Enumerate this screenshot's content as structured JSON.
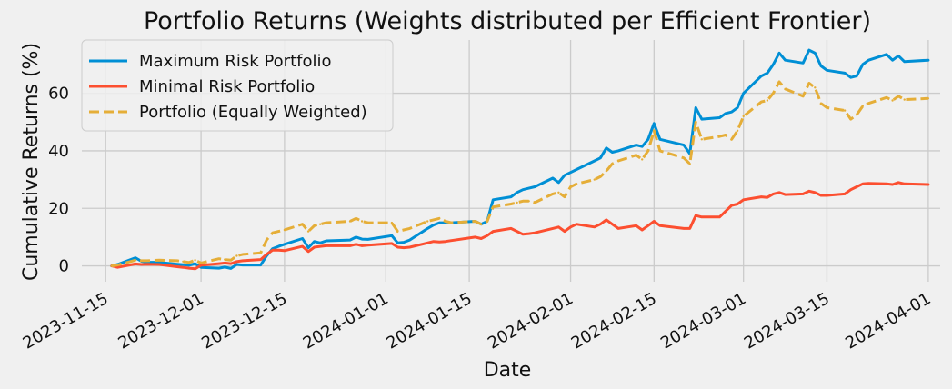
{
  "chart_data": {
    "type": "line",
    "title": "Portfolio Returns (Weights distributed per Efficient Frontier)",
    "xlabel": "Date",
    "ylabel": "Cumulative Returns (%)",
    "x_ticks": [
      "2023-11-15",
      "2023-12-01",
      "2023-12-15",
      "2024-01-01",
      "2024-01-15",
      "2024-02-01",
      "2024-02-15",
      "2024-03-01",
      "2024-03-15",
      "2024-04-01"
    ],
    "y_ticks": [
      0,
      20,
      40,
      60
    ],
    "xlim": [
      "2023-11-11",
      "2024-04-03"
    ],
    "ylim": [
      -5.5,
      78.5
    ],
    "grid": true,
    "legend_position": "top-left",
    "series": [
      {
        "name": "Maximum Risk Portfolio",
        "color": "#008fd5",
        "style": "solid",
        "points": [
          [
            "2023-11-16",
            0
          ],
          [
            "2023-11-17",
            0.5
          ],
          [
            "2023-11-20",
            2.8
          ],
          [
            "2023-11-21",
            1.6
          ],
          [
            "2023-11-22",
            1.3
          ],
          [
            "2023-11-24",
            1.2
          ],
          [
            "2023-11-27",
            0.6
          ],
          [
            "2023-11-28",
            0.4
          ],
          [
            "2023-11-29",
            0.2
          ],
          [
            "2023-11-30",
            0.8
          ],
          [
            "2023-12-01",
            -0.5
          ],
          [
            "2023-12-04",
            -0.8
          ],
          [
            "2023-12-05",
            -0.4
          ],
          [
            "2023-12-06",
            -0.9
          ],
          [
            "2023-12-07",
            0.5
          ],
          [
            "2023-12-08",
            0.3
          ],
          [
            "2023-12-11",
            0.3
          ],
          [
            "2023-12-12",
            3.5
          ],
          [
            "2023-12-13",
            6.0
          ],
          [
            "2023-12-14",
            6.8
          ],
          [
            "2023-12-15",
            7.5
          ],
          [
            "2023-12-18",
            9.5
          ],
          [
            "2023-12-19",
            6.3
          ],
          [
            "2023-12-20",
            8.5
          ],
          [
            "2023-12-21",
            8.0
          ],
          [
            "2023-12-22",
            8.7
          ],
          [
            "2023-12-26",
            9.0
          ],
          [
            "2023-12-27",
            10.0
          ],
          [
            "2023-12-28",
            9.3
          ],
          [
            "2023-12-29",
            9.2
          ],
          [
            "2024-01-02",
            10.5
          ],
          [
            "2024-01-03",
            8.0
          ],
          [
            "2024-01-04",
            8.2
          ],
          [
            "2024-01-05",
            9.0
          ],
          [
            "2024-01-08",
            13.0
          ],
          [
            "2024-01-09",
            14.2
          ],
          [
            "2024-01-10",
            15.0
          ],
          [
            "2024-01-11",
            15.0
          ],
          [
            "2024-01-12",
            15.0
          ],
          [
            "2024-01-16",
            15.5
          ],
          [
            "2024-01-17",
            14.5
          ],
          [
            "2024-01-18",
            15.5
          ],
          [
            "2024-01-19",
            23.0
          ],
          [
            "2024-01-22",
            24.0
          ],
          [
            "2024-01-23",
            25.5
          ],
          [
            "2024-01-24",
            26.5
          ],
          [
            "2024-01-25",
            27.0
          ],
          [
            "2024-01-26",
            27.5
          ],
          [
            "2024-01-29",
            30.5
          ],
          [
            "2024-01-30",
            29.0
          ],
          [
            "2024-01-31",
            31.5
          ],
          [
            "2024-02-01",
            32.5
          ],
          [
            "2024-02-02",
            33.5
          ],
          [
            "2024-02-05",
            36.5
          ],
          [
            "2024-02-06",
            37.5
          ],
          [
            "2024-02-07",
            41.0
          ],
          [
            "2024-02-08",
            39.5
          ],
          [
            "2024-02-09",
            40.0
          ],
          [
            "2024-02-12",
            42.0
          ],
          [
            "2024-02-13",
            41.5
          ],
          [
            "2024-02-14",
            44.0
          ],
          [
            "2024-02-15",
            49.5
          ],
          [
            "2024-02-16",
            44.0
          ],
          [
            "2024-02-20",
            42.0
          ],
          [
            "2024-02-21",
            39.0
          ],
          [
            "2024-02-22",
            55.0
          ],
          [
            "2024-02-23",
            51.0
          ],
          [
            "2024-02-26",
            51.5
          ],
          [
            "2024-02-27",
            53.0
          ],
          [
            "2024-02-28",
            53.5
          ],
          [
            "2024-02-29",
            55.0
          ],
          [
            "2024-03-01",
            60.0
          ],
          [
            "2024-03-04",
            66.0
          ],
          [
            "2024-03-05",
            67.0
          ],
          [
            "2024-03-06",
            70.0
          ],
          [
            "2024-03-07",
            74.0
          ],
          [
            "2024-03-08",
            71.5
          ],
          [
            "2024-03-11",
            70.5
          ],
          [
            "2024-03-12",
            75.0
          ],
          [
            "2024-03-13",
            74.0
          ],
          [
            "2024-03-14",
            69.5
          ],
          [
            "2024-03-15",
            68.0
          ],
          [
            "2024-03-18",
            67.0
          ],
          [
            "2024-03-19",
            65.5
          ],
          [
            "2024-03-20",
            66.0
          ],
          [
            "2024-03-21",
            70.0
          ],
          [
            "2024-03-22",
            71.5
          ],
          [
            "2024-03-25",
            73.5
          ],
          [
            "2024-03-26",
            71.5
          ],
          [
            "2024-03-27",
            73.0
          ],
          [
            "2024-03-28",
            71.0
          ],
          [
            "2024-04-01",
            71.5
          ]
        ]
      },
      {
        "name": "Minimal Risk Portfolio",
        "color": "#fc4f30",
        "style": "solid",
        "points": [
          [
            "2023-11-16",
            0
          ],
          [
            "2023-11-17",
            -0.5
          ],
          [
            "2023-11-20",
            0.7
          ],
          [
            "2023-11-21",
            0.5
          ],
          [
            "2023-11-22",
            0.6
          ],
          [
            "2023-11-24",
            0.5
          ],
          [
            "2023-11-27",
            -0.3
          ],
          [
            "2023-11-28",
            -0.5
          ],
          [
            "2023-11-29",
            -0.8
          ],
          [
            "2023-11-30",
            -1.0
          ],
          [
            "2023-12-01",
            0.2
          ],
          [
            "2023-12-04",
            0.8
          ],
          [
            "2023-12-05",
            1.0
          ],
          [
            "2023-12-06",
            0.8
          ],
          [
            "2023-12-07",
            1.5
          ],
          [
            "2023-12-08",
            1.8
          ],
          [
            "2023-12-11",
            2.2
          ],
          [
            "2023-12-12",
            4.0
          ],
          [
            "2023-12-13",
            5.5
          ],
          [
            "2023-12-14",
            5.5
          ],
          [
            "2023-12-15",
            5.3
          ],
          [
            "2023-12-18",
            6.8
          ],
          [
            "2023-12-19",
            5.0
          ],
          [
            "2023-12-20",
            6.5
          ],
          [
            "2023-12-21",
            6.8
          ],
          [
            "2023-12-22",
            7.0
          ],
          [
            "2023-12-26",
            7.0
          ],
          [
            "2023-12-27",
            7.5
          ],
          [
            "2023-12-28",
            7.0
          ],
          [
            "2023-12-29",
            7.2
          ],
          [
            "2024-01-02",
            7.8
          ],
          [
            "2024-01-03",
            6.5
          ],
          [
            "2024-01-04",
            6.3
          ],
          [
            "2024-01-05",
            6.5
          ],
          [
            "2024-01-08",
            8.0
          ],
          [
            "2024-01-09",
            8.5
          ],
          [
            "2024-01-10",
            8.3
          ],
          [
            "2024-01-11",
            8.5
          ],
          [
            "2024-01-12",
            8.8
          ],
          [
            "2024-01-16",
            10.0
          ],
          [
            "2024-01-17",
            9.5
          ],
          [
            "2024-01-18",
            10.5
          ],
          [
            "2024-01-19",
            12.0
          ],
          [
            "2024-01-22",
            13.0
          ],
          [
            "2024-01-23",
            12.0
          ],
          [
            "2024-01-24",
            11.0
          ],
          [
            "2024-01-25",
            11.2
          ],
          [
            "2024-01-26",
            11.5
          ],
          [
            "2024-01-29",
            13.0
          ],
          [
            "2024-01-30",
            13.5
          ],
          [
            "2024-01-31",
            12.0
          ],
          [
            "2024-02-01",
            13.5
          ],
          [
            "2024-02-02",
            14.5
          ],
          [
            "2024-02-05",
            13.5
          ],
          [
            "2024-02-06",
            14.5
          ],
          [
            "2024-02-07",
            16.0
          ],
          [
            "2024-02-08",
            14.5
          ],
          [
            "2024-02-09",
            13.0
          ],
          [
            "2024-02-12",
            14.0
          ],
          [
            "2024-02-13",
            12.5
          ],
          [
            "2024-02-14",
            14.0
          ],
          [
            "2024-02-15",
            15.5
          ],
          [
            "2024-02-16",
            14.0
          ],
          [
            "2024-02-20",
            13.0
          ],
          [
            "2024-02-21",
            13.0
          ],
          [
            "2024-02-22",
            17.5
          ],
          [
            "2024-02-23",
            17.0
          ],
          [
            "2024-02-26",
            17.0
          ],
          [
            "2024-02-27",
            19.0
          ],
          [
            "2024-02-28",
            21.0
          ],
          [
            "2024-02-29",
            21.5
          ],
          [
            "2024-03-01",
            23.0
          ],
          [
            "2024-03-04",
            24.0
          ],
          [
            "2024-03-05",
            23.8
          ],
          [
            "2024-03-06",
            25.0
          ],
          [
            "2024-03-07",
            25.5
          ],
          [
            "2024-03-08",
            24.8
          ],
          [
            "2024-03-11",
            25.0
          ],
          [
            "2024-03-12",
            26.0
          ],
          [
            "2024-03-13",
            25.5
          ],
          [
            "2024-03-14",
            24.5
          ],
          [
            "2024-03-15",
            24.5
          ],
          [
            "2024-03-18",
            25.0
          ],
          [
            "2024-03-19",
            26.5
          ],
          [
            "2024-03-20",
            27.5
          ],
          [
            "2024-03-21",
            28.5
          ],
          [
            "2024-03-22",
            28.7
          ],
          [
            "2024-03-25",
            28.5
          ],
          [
            "2024-03-26",
            28.3
          ],
          [
            "2024-03-27",
            29.0
          ],
          [
            "2024-03-28",
            28.5
          ],
          [
            "2024-04-01",
            28.3
          ]
        ]
      },
      {
        "name": "Portfolio (Equally Weighted)",
        "color": "#e5ae38",
        "style": "dashed",
        "points": [
          [
            "2023-11-16",
            0
          ],
          [
            "2023-11-17",
            0.3
          ],
          [
            "2023-11-20",
            2.0
          ],
          [
            "2023-11-21",
            1.8
          ],
          [
            "2023-11-22",
            1.8
          ],
          [
            "2023-11-24",
            2.0
          ],
          [
            "2023-11-27",
            1.8
          ],
          [
            "2023-11-28",
            1.5
          ],
          [
            "2023-11-29",
            1.2
          ],
          [
            "2023-11-30",
            2.0
          ],
          [
            "2023-12-01",
            1.0
          ],
          [
            "2023-12-04",
            2.5
          ],
          [
            "2023-12-05",
            2.2
          ],
          [
            "2023-12-06",
            2.0
          ],
          [
            "2023-12-07",
            3.5
          ],
          [
            "2023-12-08",
            4.0
          ],
          [
            "2023-12-11",
            4.5
          ],
          [
            "2023-12-12",
            9.0
          ],
          [
            "2023-12-13",
            11.5
          ],
          [
            "2023-12-14",
            12.0
          ],
          [
            "2023-12-15",
            12.5
          ],
          [
            "2023-12-18",
            14.5
          ],
          [
            "2023-12-19",
            12.0
          ],
          [
            "2023-12-20",
            14.0
          ],
          [
            "2023-12-21",
            14.5
          ],
          [
            "2023-12-22",
            15.0
          ],
          [
            "2023-12-26",
            15.5
          ],
          [
            "2023-12-27",
            16.5
          ],
          [
            "2023-12-28",
            15.5
          ],
          [
            "2023-12-29",
            15.0
          ],
          [
            "2024-01-02",
            15.0
          ],
          [
            "2024-01-03",
            12.0
          ],
          [
            "2024-01-04",
            12.5
          ],
          [
            "2024-01-05",
            13.0
          ],
          [
            "2024-01-08",
            15.5
          ],
          [
            "2024-01-09",
            16.0
          ],
          [
            "2024-01-10",
            16.5
          ],
          [
            "2024-01-11",
            15.5
          ],
          [
            "2024-01-12",
            15.0
          ],
          [
            "2024-01-16",
            15.5
          ],
          [
            "2024-01-17",
            14.5
          ],
          [
            "2024-01-18",
            15.5
          ],
          [
            "2024-01-19",
            20.5
          ],
          [
            "2024-01-22",
            21.5
          ],
          [
            "2024-01-23",
            22.0
          ],
          [
            "2024-01-24",
            22.5
          ],
          [
            "2024-01-25",
            22.5
          ],
          [
            "2024-01-26",
            22.0
          ],
          [
            "2024-01-29",
            25.0
          ],
          [
            "2024-01-30",
            25.5
          ],
          [
            "2024-01-31",
            24.0
          ],
          [
            "2024-02-01",
            27.5
          ],
          [
            "2024-02-02",
            28.5
          ],
          [
            "2024-02-05",
            30.0
          ],
          [
            "2024-02-06",
            31.0
          ],
          [
            "2024-02-07",
            33.0
          ],
          [
            "2024-02-08",
            35.5
          ],
          [
            "2024-02-09",
            36.5
          ],
          [
            "2024-02-12",
            38.5
          ],
          [
            "2024-02-13",
            37.0
          ],
          [
            "2024-02-14",
            40.0
          ],
          [
            "2024-02-15",
            47.0
          ],
          [
            "2024-02-16",
            40.0
          ],
          [
            "2024-02-20",
            37.5
          ],
          [
            "2024-02-21",
            35.5
          ],
          [
            "2024-02-22",
            50.0
          ],
          [
            "2024-02-23",
            44.0
          ],
          [
            "2024-02-26",
            45.0
          ],
          [
            "2024-02-27",
            45.5
          ],
          [
            "2024-02-28",
            44.0
          ],
          [
            "2024-02-29",
            47.0
          ],
          [
            "2024-03-01",
            52.0
          ],
          [
            "2024-03-04",
            57.0
          ],
          [
            "2024-03-05",
            57.5
          ],
          [
            "2024-03-06",
            60.0
          ],
          [
            "2024-03-07",
            64.0
          ],
          [
            "2024-03-08",
            61.5
          ],
          [
            "2024-03-11",
            59.0
          ],
          [
            "2024-03-12",
            63.5
          ],
          [
            "2024-03-13",
            62.0
          ],
          [
            "2024-03-14",
            56.5
          ],
          [
            "2024-03-15",
            55.0
          ],
          [
            "2024-03-18",
            54.0
          ],
          [
            "2024-03-19",
            51.0
          ],
          [
            "2024-03-20",
            52.5
          ],
          [
            "2024-03-21",
            55.5
          ],
          [
            "2024-03-22",
            56.5
          ],
          [
            "2024-03-25",
            58.5
          ],
          [
            "2024-03-26",
            57.5
          ],
          [
            "2024-03-27",
            59.0
          ],
          [
            "2024-03-28",
            57.8
          ],
          [
            "2024-04-01",
            58.2
          ]
        ]
      }
    ]
  }
}
